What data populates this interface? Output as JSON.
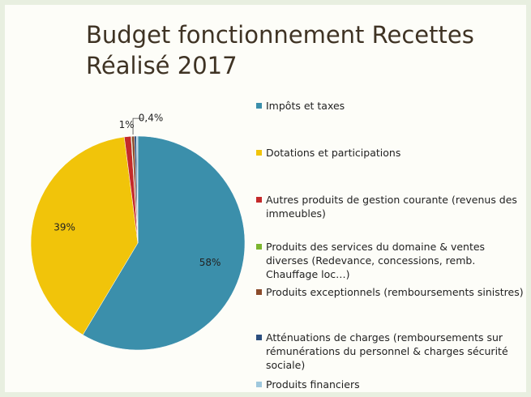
{
  "chart_data": {
    "type": "pie",
    "title": "Budget fonctionnement Recettes Réalisé 2017",
    "categories": [
      "Impôts et taxes",
      "Dotations et participations",
      "Autres produits de gestion courante (revenus des immeubles)",
      "Produits des services du domaine & ventes diverses (Redevance, concessions, remb. Chauffage loc…)",
      "Produits exceptionnels (remboursements sinistres)",
      "Atténuations de charges (remboursements sur rémunérations du personnel & charges sécurité sociale)",
      "Produits financiers"
    ],
    "values": [
      58,
      39,
      1,
      0.1,
      0.4,
      0.3,
      0.2
    ],
    "value_labels": [
      "58%",
      "39%",
      "1%",
      null,
      "0,4%",
      null,
      null
    ],
    "colors": [
      "#3b8fab",
      "#f1c40a",
      "#c42a2a",
      "#7cb62f",
      "#8b4b2b",
      "#2c4f7f",
      "#9fc8dd"
    ],
    "legend": "right"
  }
}
